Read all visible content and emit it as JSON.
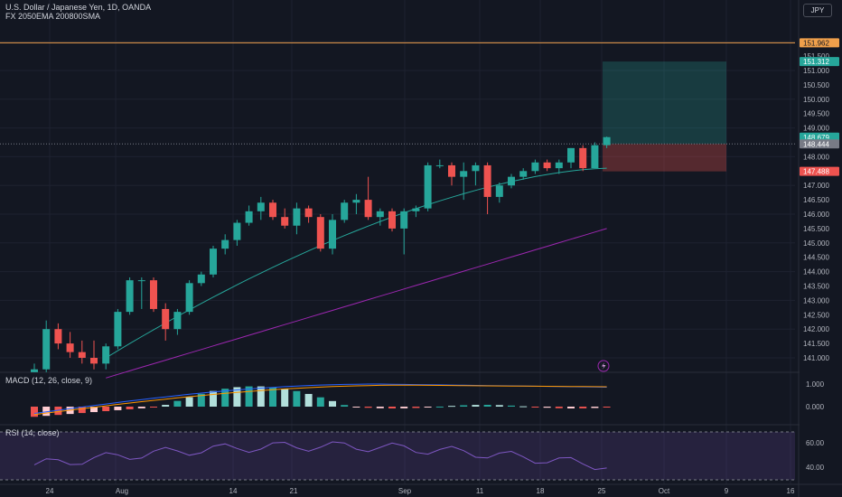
{
  "header": {
    "symbol_line": "U.S. Dollar / Japanese Yen, 1D, OANDA",
    "indicator_line": "FX 2050EMA 200800SMA",
    "currency_button": "JPY"
  },
  "colors": {
    "background": "#131722",
    "up": "#26a69a",
    "down": "#ef5350",
    "ema": "#26a69a",
    "sma": "#9c27b0",
    "horizontal_line": "#f0a04b",
    "macd_line": "#2962ff",
    "signal_line": "#ff9800",
    "rsi_band": "#7e57c2"
  },
  "price_axis": {
    "ticks": [
      "153.000",
      "152.000",
      "151.500",
      "151.000",
      "150.500",
      "150.000",
      "149.500",
      "149.000",
      "148.500",
      "148.000",
      "147.500",
      "147.000",
      "146.500",
      "146.000",
      "145.500",
      "145.000",
      "144.500",
      "144.000",
      "143.500",
      "143.000",
      "142.500",
      "142.000",
      "141.500",
      "141.000"
    ],
    "labels": [
      {
        "text": "151.962",
        "value": 151.962,
        "color": "#f0a04b",
        "text_color": "#131722"
      },
      {
        "text": "151.312",
        "value": 151.312,
        "color": "#26a69a",
        "text_color": "#ffffff"
      },
      {
        "text": "148.679",
        "value": 148.679,
        "color": "#26a69a",
        "text_color": "#ffffff"
      },
      {
        "text": "09:00:36",
        "value": 148.46,
        "color": "#26a69a",
        "text_color": "#ffffff"
      },
      {
        "text": "148.444",
        "value": 148.444,
        "color": "#787b86",
        "text_color": "#ffffff"
      },
      {
        "text": "147.488",
        "value": 147.488,
        "color": "#ef5350",
        "text_color": "#ffffff"
      }
    ]
  },
  "macd": {
    "legend": "MACD (12, 26, close, 9)",
    "axis_ticks": [
      "1.000",
      "0.000"
    ]
  },
  "rsi": {
    "legend": "RSI (14, close)",
    "axis_ticks": [
      "60.00",
      "40.00"
    ]
  },
  "time_axis": {
    "labels": [
      "24",
      "Aug",
      "14",
      "21",
      "Sep",
      "11",
      "18",
      "25",
      "Oct",
      "9",
      "16"
    ]
  },
  "chart_data": {
    "type": "candlestick",
    "title": "U.S. Dollar / Japanese Yen, 1D, OANDA",
    "ylim": [
      140.6,
      153.1
    ],
    "horizontal_line": 151.962,
    "position": {
      "entry": 148.444,
      "target": 151.312,
      "stop": 147.488
    },
    "candles": [
      {
        "o": 140.5,
        "h": 140.8,
        "l": 140.3,
        "c": 140.6
      },
      {
        "o": 140.6,
        "h": 142.3,
        "l": 140.5,
        "c": 142.0
      },
      {
        "o": 142.0,
        "h": 142.2,
        "l": 141.3,
        "c": 141.5
      },
      {
        "o": 141.5,
        "h": 141.9,
        "l": 141.0,
        "c": 141.2
      },
      {
        "o": 141.2,
        "h": 141.6,
        "l": 140.8,
        "c": 141.0
      },
      {
        "o": 141.0,
        "h": 141.6,
        "l": 140.6,
        "c": 140.8
      },
      {
        "o": 140.8,
        "h": 141.5,
        "l": 140.6,
        "c": 141.4
      },
      {
        "o": 141.4,
        "h": 142.7,
        "l": 141.3,
        "c": 142.6
      },
      {
        "o": 142.6,
        "h": 143.8,
        "l": 142.5,
        "c": 143.7
      },
      {
        "o": 143.7,
        "h": 143.8,
        "l": 142.7,
        "c": 143.7
      },
      {
        "o": 143.7,
        "h": 143.8,
        "l": 142.6,
        "c": 142.7
      },
      {
        "o": 142.7,
        "h": 142.9,
        "l": 141.6,
        "c": 142.0
      },
      {
        "o": 142.0,
        "h": 142.7,
        "l": 141.8,
        "c": 142.6
      },
      {
        "o": 142.6,
        "h": 143.7,
        "l": 142.5,
        "c": 143.6
      },
      {
        "o": 143.6,
        "h": 144.0,
        "l": 143.5,
        "c": 143.9
      },
      {
        "o": 143.9,
        "h": 144.9,
        "l": 143.8,
        "c": 144.8
      },
      {
        "o": 144.8,
        "h": 145.3,
        "l": 144.6,
        "c": 145.1
      },
      {
        "o": 145.1,
        "h": 145.8,
        "l": 144.9,
        "c": 145.7
      },
      {
        "o": 145.7,
        "h": 146.3,
        "l": 145.6,
        "c": 146.1
      },
      {
        "o": 146.1,
        "h": 146.6,
        "l": 145.8,
        "c": 146.4
      },
      {
        "o": 146.4,
        "h": 146.5,
        "l": 145.8,
        "c": 145.9
      },
      {
        "o": 145.9,
        "h": 146.2,
        "l": 145.5,
        "c": 145.6
      },
      {
        "o": 145.6,
        "h": 146.4,
        "l": 145.3,
        "c": 146.2
      },
      {
        "o": 146.2,
        "h": 146.3,
        "l": 145.7,
        "c": 145.9
      },
      {
        "o": 145.9,
        "h": 146.0,
        "l": 144.7,
        "c": 144.8
      },
      {
        "o": 144.8,
        "h": 146.0,
        "l": 144.6,
        "c": 145.8
      },
      {
        "o": 145.8,
        "h": 146.5,
        "l": 145.7,
        "c": 146.4
      },
      {
        "o": 146.4,
        "h": 146.7,
        "l": 146.0,
        "c": 146.5
      },
      {
        "o": 146.5,
        "h": 147.3,
        "l": 145.8,
        "c": 145.9
      },
      {
        "o": 145.9,
        "h": 146.2,
        "l": 145.6,
        "c": 146.1
      },
      {
        "o": 146.1,
        "h": 146.2,
        "l": 145.4,
        "c": 145.5
      },
      {
        "o": 145.5,
        "h": 146.2,
        "l": 144.6,
        "c": 146.1
      },
      {
        "o": 146.1,
        "h": 146.3,
        "l": 145.9,
        "c": 146.2
      },
      {
        "o": 146.2,
        "h": 147.8,
        "l": 146.1,
        "c": 147.7
      },
      {
        "o": 147.7,
        "h": 147.9,
        "l": 147.6,
        "c": 147.7
      },
      {
        "o": 147.7,
        "h": 147.8,
        "l": 147.0,
        "c": 147.3
      },
      {
        "o": 147.3,
        "h": 147.8,
        "l": 146.5,
        "c": 147.5
      },
      {
        "o": 147.5,
        "h": 147.8,
        "l": 147.0,
        "c": 147.7
      },
      {
        "o": 147.7,
        "h": 147.8,
        "l": 146.0,
        "c": 146.6
      },
      {
        "o": 146.6,
        "h": 147.1,
        "l": 146.4,
        "c": 147.0
      },
      {
        "o": 147.0,
        "h": 147.4,
        "l": 146.9,
        "c": 147.3
      },
      {
        "o": 147.3,
        "h": 147.6,
        "l": 147.2,
        "c": 147.5
      },
      {
        "o": 147.5,
        "h": 147.9,
        "l": 147.4,
        "c": 147.8
      },
      {
        "o": 147.8,
        "h": 147.9,
        "l": 147.5,
        "c": 147.6
      },
      {
        "o": 147.6,
        "h": 147.9,
        "l": 147.4,
        "c": 147.8
      },
      {
        "o": 147.8,
        "h": 148.3,
        "l": 147.6,
        "c": 148.3
      },
      {
        "o": 148.3,
        "h": 148.4,
        "l": 147.5,
        "c": 147.6
      },
      {
        "o": 147.6,
        "h": 148.5,
        "l": 147.6,
        "c": 148.4
      },
      {
        "o": 148.4,
        "h": 148.7,
        "l": 148.3,
        "c": 148.68
      }
    ],
    "ema20_endpoints": [
      141.0,
      147.6
    ],
    "sma50_endpoints": [
      140.3,
      145.5
    ],
    "macd_values": {
      "histogram_range": [
        -0.5,
        0.95
      ],
      "macd_peak": 1.0,
      "signal_peak": 0.95
    },
    "rsi_band": [
      30,
      70
    ]
  }
}
